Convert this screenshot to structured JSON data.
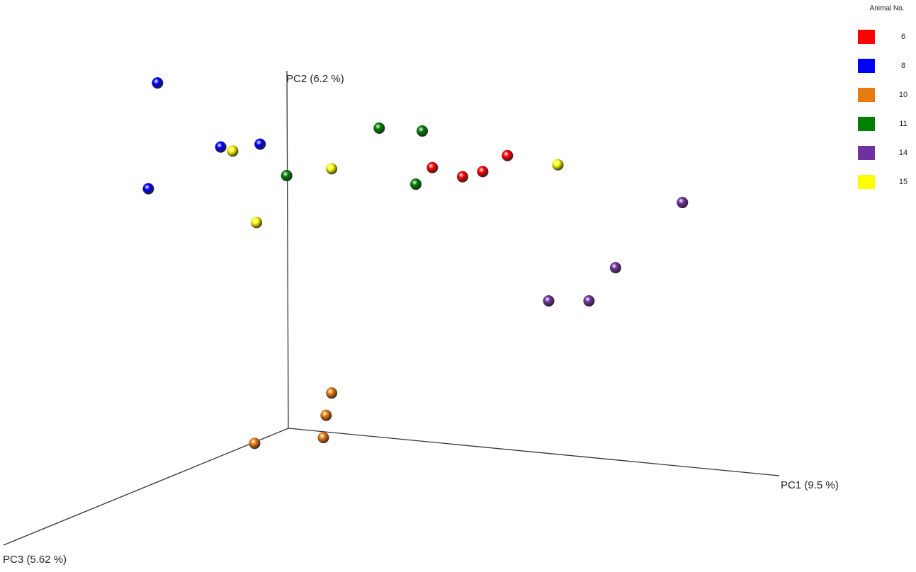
{
  "chart_data": {
    "type": "scatter",
    "xlabel": "PC1 (9.5 %)",
    "ylabel": "PC2 (6.2 %)",
    "zlabel": "PC3 (5.62 %)",
    "legend_title": "Animal No.",
    "legend": "top-right",
    "xlim": [
      0,
      100
    ],
    "ylim": [
      0,
      100
    ],
    "series": [
      {
        "name": "6",
        "color": "#ff0000",
        "x": [
          47.2,
          50.5,
          52.7,
          55.4
        ],
        "values": [
          70.7,
          69.1,
          70.0,
          72.8
        ]
      },
      {
        "name": "8",
        "color": "#0000ff",
        "x": [
          17.2,
          24.1,
          28.4,
          16.2
        ],
        "values": [
          85.5,
          74.3,
          74.8,
          67.0
        ]
      },
      {
        "name": "10",
        "color": "#e87a10",
        "x": [
          36.2,
          35.6,
          35.3,
          27.8
        ],
        "values": [
          31.3,
          27.4,
          23.5,
          22.5
        ]
      },
      {
        "name": "11",
        "color": "#008000",
        "x": [
          41.4,
          46.1,
          31.3,
          45.4
        ],
        "values": [
          77.6,
          77.1,
          69.3,
          67.8
        ]
      },
      {
        "name": "14",
        "color": "#7030a0",
        "x": [
          74.5,
          67.2,
          59.9,
          64.3
        ],
        "values": [
          64.6,
          53.2,
          47.4,
          47.4
        ]
      },
      {
        "name": "15",
        "color": "#ffff00",
        "x": [
          25.4,
          36.2,
          60.9,
          28.0
        ],
        "values": [
          73.6,
          70.5,
          71.2,
          61.1
        ]
      }
    ]
  }
}
